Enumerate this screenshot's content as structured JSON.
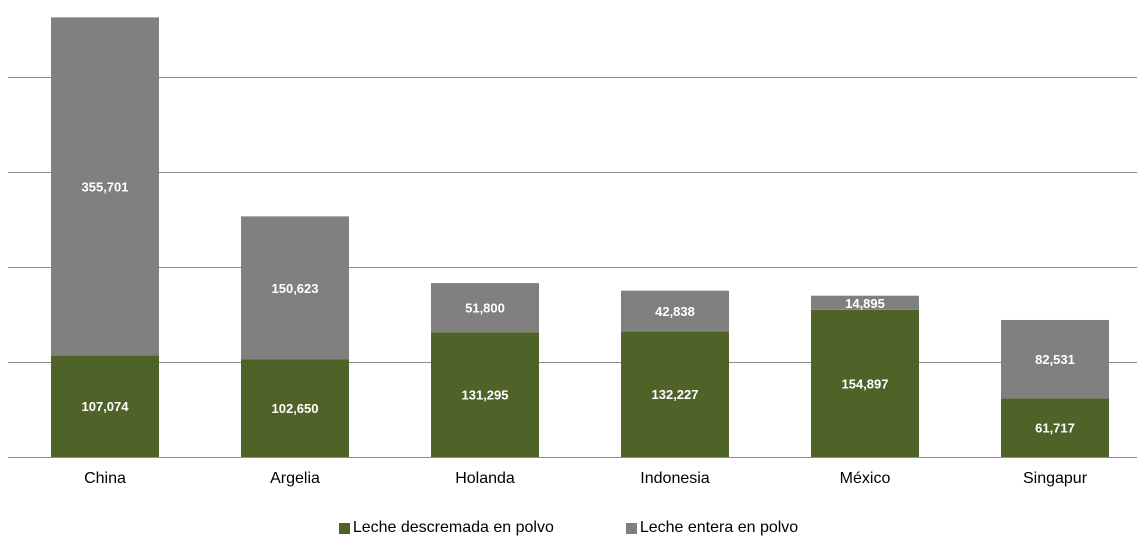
{
  "chart_data": {
    "type": "bar",
    "stacked": true,
    "categories": [
      "China",
      "Argelia",
      "Holanda",
      "Indonesia",
      "México",
      "Singapur"
    ],
    "series": [
      {
        "name": "Leche descremada en polvo",
        "color": "#4f6228",
        "values": [
          107074,
          102650,
          131295,
          132227,
          154897,
          61717
        ],
        "labels": [
          "107,074",
          "102,650",
          "131,295",
          "132,227",
          "154,897",
          "61,717"
        ]
      },
      {
        "name": "Leche entera en polvo",
        "color": "#808080",
        "values": [
          355701,
          150623,
          51800,
          42838,
          14895,
          82531
        ],
        "labels": [
          "355,701",
          "150,623",
          "51,800",
          "42,838",
          "14,895",
          "82,531"
        ]
      }
    ],
    "ylim": [
      0,
      460000
    ],
    "y_tick_step": 100000,
    "y_tick_labels_shown": false,
    "grid": true,
    "legend": "bottom",
    "xlabel": "",
    "ylabel": "",
    "title": ""
  }
}
